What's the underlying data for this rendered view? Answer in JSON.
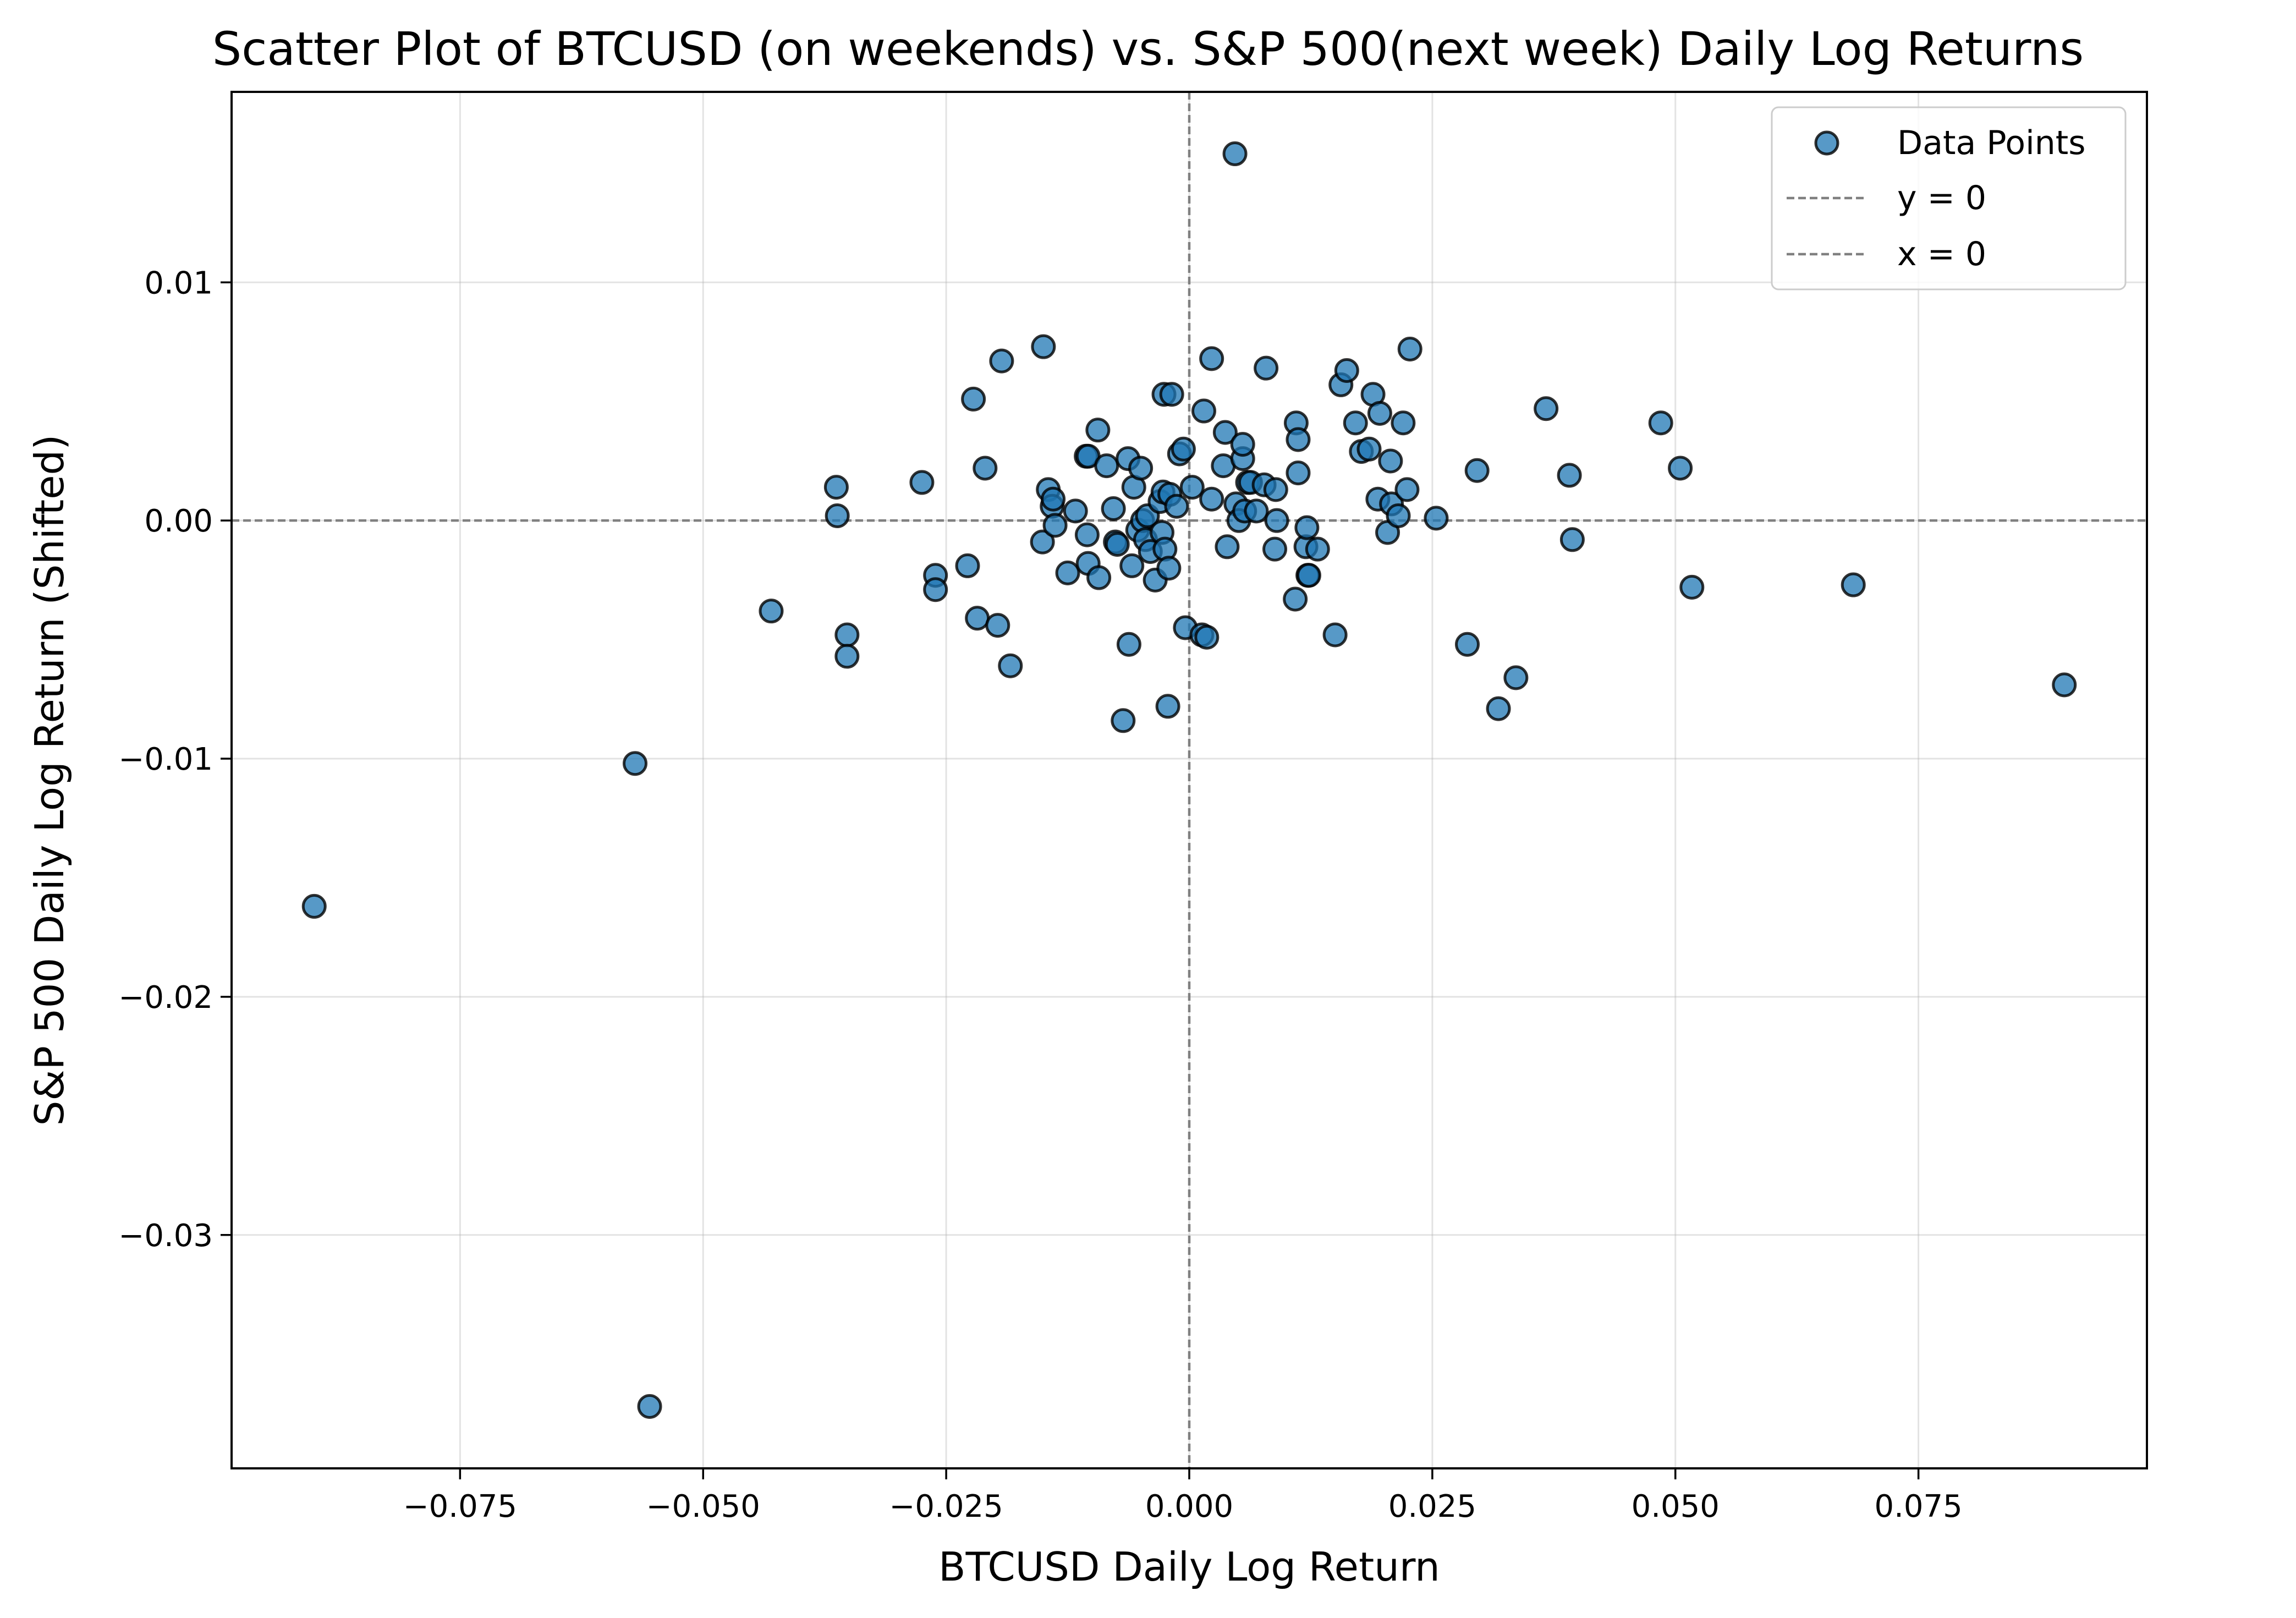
{
  "chart_data": {
    "type": "scatter",
    "title": "Scatter Plot of BTCUSD (on weekends) vs. S&P 500(next week) Daily Log Returns",
    "xlabel": "BTCUSD Daily Log Return",
    "ylabel": "S&P 500 Daily Log Return (Shifted)",
    "xlim": [
      -0.0985,
      0.0985
    ],
    "ylim": [
      -0.0398,
      0.018
    ],
    "x_ticks": [
      -0.075,
      -0.05,
      -0.025,
      0.0,
      0.025,
      0.05,
      0.075
    ],
    "x_tick_labels": [
      "−0.075",
      "−0.050",
      "−0.025",
      "0.000",
      "0.025",
      "0.050",
      "0.075"
    ],
    "y_ticks": [
      -0.03,
      -0.02,
      -0.01,
      0.0,
      0.01
    ],
    "y_tick_labels": [
      "−0.03",
      "−0.02",
      "−0.01",
      "0.00",
      "0.01"
    ],
    "grid": true,
    "legend_position": "top-right",
    "legend": [
      "Data Points",
      "y = 0",
      "x = 0"
    ],
    "colors": {
      "points": "#1f77b4",
      "reference_lines": "#808080"
    },
    "reference_lines": [
      {
        "name": "y = 0",
        "axis": "y",
        "value": 0
      },
      {
        "name": "x = 0",
        "axis": "x",
        "value": 0
      }
    ],
    "series": [
      {
        "name": "Data Points",
        "points": [
          [
            -0.09,
            -0.0162
          ],
          [
            -0.057,
            -0.0102
          ],
          [
            -0.0555,
            -0.0372
          ],
          [
            -0.043,
            -0.0038
          ],
          [
            -0.0363,
            0.0014
          ],
          [
            -0.0362,
            0.0002
          ],
          [
            -0.0352,
            -0.0048
          ],
          [
            -0.0352,
            -0.0057
          ],
          [
            -0.0275,
            0.0016
          ],
          [
            -0.0261,
            -0.0023
          ],
          [
            -0.0261,
            -0.0029
          ],
          [
            -0.0228,
            -0.0019
          ],
          [
            -0.0222,
            0.0051
          ],
          [
            -0.0218,
            -0.0041
          ],
          [
            -0.021,
            0.0022
          ],
          [
            -0.0197,
            -0.0044
          ],
          [
            -0.0193,
            0.0067
          ],
          [
            -0.0184,
            -0.0061
          ],
          [
            -0.015,
            0.0073
          ],
          [
            -0.0151,
            -0.0009
          ],
          [
            -0.0145,
            0.0013
          ],
          [
            -0.0141,
            0.0006
          ],
          [
            -0.014,
            0.0009
          ],
          [
            -0.0138,
            -0.0002
          ],
          [
            -0.0125,
            -0.0022
          ],
          [
            -0.0117,
            0.0004
          ],
          [
            -0.0106,
            0.0027
          ],
          [
            -0.0104,
            0.0027
          ],
          [
            -0.0105,
            -0.0006
          ],
          [
            -0.0104,
            -0.0018
          ],
          [
            -0.0094,
            0.0038
          ],
          [
            -0.0093,
            -0.0024
          ],
          [
            -0.0085,
            0.0023
          ],
          [
            -0.0078,
            0.0005
          ],
          [
            -0.0076,
            -0.0009
          ],
          [
            -0.0074,
            -0.001
          ],
          [
            -0.0068,
            -0.0084
          ],
          [
            -0.0063,
            0.0026
          ],
          [
            -0.0062,
            -0.0052
          ],
          [
            -0.0059,
            -0.0019
          ],
          [
            -0.0057,
            0.0014
          ],
          [
            -0.0053,
            -0.0004
          ],
          [
            -0.005,
            0.0022
          ],
          [
            -0.0048,
            0.0
          ],
          [
            -0.0045,
            -0.0008
          ],
          [
            -0.0043,
            0.0002
          ],
          [
            -0.004,
            -0.0013
          ],
          [
            -0.0035,
            -0.0025
          ],
          [
            -0.003,
            0.0008
          ],
          [
            -0.0028,
            -0.0005
          ],
          [
            -0.0027,
            0.0012
          ],
          [
            -0.0025,
            -0.0012
          ],
          [
            -0.0026,
            0.0053
          ],
          [
            -0.0022,
            -0.0078
          ],
          [
            -0.0021,
            -0.002
          ],
          [
            -0.002,
            0.0011
          ],
          [
            -0.0018,
            0.0053
          ],
          [
            -0.0013,
            0.0006
          ],
          [
            -0.001,
            0.0028
          ],
          [
            -0.0006,
            0.003
          ],
          [
            -0.0004,
            -0.0045
          ],
          [
            0.0003,
            0.0014
          ],
          [
            0.0013,
            -0.0048
          ],
          [
            0.0015,
            0.0046
          ],
          [
            0.0018,
            -0.0049
          ],
          [
            0.0023,
            0.0068
          ],
          [
            0.0023,
            0.0009
          ],
          [
            0.0035,
            0.0023
          ],
          [
            0.0037,
            0.0037
          ],
          [
            0.0039,
            -0.0011
          ],
          [
            0.0047,
            0.0154
          ],
          [
            0.0048,
            0.0007
          ],
          [
            0.0051,
            0.0
          ],
          [
            0.0055,
            0.0026
          ],
          [
            0.0055,
            0.0032
          ],
          [
            0.0057,
            0.0004
          ],
          [
            0.006,
            0.0016
          ],
          [
            0.0063,
            0.0016
          ],
          [
            0.0069,
            0.0004
          ],
          [
            0.0077,
            0.0015
          ],
          [
            0.0079,
            0.0064
          ],
          [
            0.0088,
            -0.0012
          ],
          [
            0.0089,
            0.0013
          ],
          [
            0.009,
            0.0
          ],
          [
            0.0109,
            -0.0033
          ],
          [
            0.011,
            0.0041
          ],
          [
            0.0112,
            0.0034
          ],
          [
            0.0112,
            0.002
          ],
          [
            0.012,
            -0.0011
          ],
          [
            0.0121,
            -0.0003
          ],
          [
            0.0122,
            -0.0023
          ],
          [
            0.0123,
            -0.0023
          ],
          [
            0.0132,
            -0.0012
          ],
          [
            0.015,
            -0.0048
          ],
          [
            0.0156,
            0.0057
          ],
          [
            0.0162,
            0.0063
          ],
          [
            0.0171,
            0.0041
          ],
          [
            0.0177,
            0.0029
          ],
          [
            0.0185,
            0.003
          ],
          [
            0.0189,
            0.0053
          ],
          [
            0.0194,
            0.0009
          ],
          [
            0.0196,
            0.0045
          ],
          [
            0.0204,
            -0.0005
          ],
          [
            0.0207,
            0.0025
          ],
          [
            0.0208,
            0.0007
          ],
          [
            0.0215,
            0.0002
          ],
          [
            0.022,
            0.0041
          ],
          [
            0.0224,
            0.0013
          ],
          [
            0.0227,
            0.0072
          ],
          [
            0.0254,
            0.0001
          ],
          [
            0.0286,
            -0.0052
          ],
          [
            0.0296,
            0.0021
          ],
          [
            0.0318,
            -0.0079
          ],
          [
            0.0336,
            -0.0066
          ],
          [
            0.0367,
            0.0047
          ],
          [
            0.0391,
            0.0019
          ],
          [
            0.0394,
            -0.0008
          ],
          [
            0.0485,
            0.0041
          ],
          [
            0.0505,
            0.0022
          ],
          [
            0.0517,
            -0.0028
          ],
          [
            0.0683,
            -0.0027
          ],
          [
            0.09,
            -0.0069
          ]
        ]
      }
    ]
  }
}
